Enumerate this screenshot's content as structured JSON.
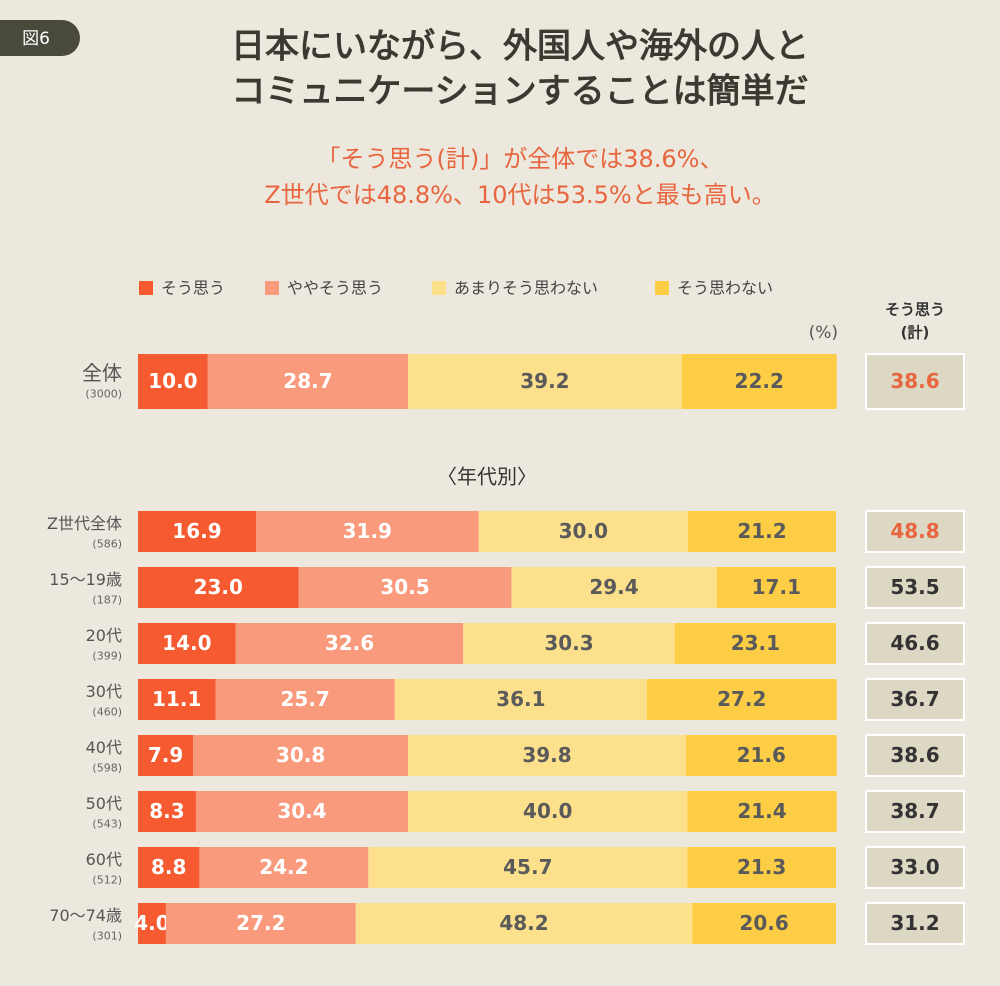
{
  "chart_data": {
    "type": "bar",
    "orientation": "horizontal",
    "stacked": true,
    "badge": "図6",
    "title": [
      "日本にいながら、外国人や海外の人と",
      "コミュニケーションすることは簡単だ"
    ],
    "subtitle": [
      "「そう思う(計)」が全体では38.6%、",
      "Z世代では48.8%、10代は53.5%と最も高い。"
    ],
    "unit_label": "(%)",
    "section_label": "〈年代別〉",
    "categories": [
      "全体",
      "Z世代全体",
      "15〜19歳",
      "20代",
      "30代",
      "40代",
      "50代",
      "60代",
      "70〜74歳"
    ],
    "counts": [
      "(3000)",
      "(586)",
      "(187)",
      "(399)",
      "(460)",
      "(598)",
      "(543)",
      "(512)",
      "(301)"
    ],
    "xlim": [
      0,
      100
    ],
    "series": [
      {
        "name": "そう思う",
        "color": "#f55a30",
        "label_color": "#ffffff",
        "values": [
          10.0,
          16.9,
          23.0,
          14.0,
          11.1,
          7.9,
          8.3,
          8.8,
          4.0
        ],
        "value_labels": [
          "10.0",
          "16.9",
          "23.0",
          "14.0",
          "11.1",
          "7.9",
          "8.3",
          "8.8",
          "4.0"
        ]
      },
      {
        "name": "ややそう思う",
        "color": "#f99a7c",
        "label_color": "#ffffff",
        "values": [
          28.7,
          31.9,
          30.5,
          32.6,
          25.7,
          30.8,
          30.4,
          24.2,
          27.2
        ],
        "value_labels": [
          "28.7",
          "31.9",
          "30.5",
          "32.6",
          "25.7",
          "30.8",
          "30.4",
          "24.2",
          "27.2"
        ]
      },
      {
        "name": "あまりそう思わない",
        "color": "#fde08c",
        "label_color": "#5a5a5a",
        "values": [
          39.2,
          30.0,
          29.4,
          30.3,
          36.1,
          39.8,
          40.0,
          45.7,
          48.2
        ],
        "value_labels": [
          "39.2",
          "30.0",
          "29.4",
          "30.3",
          "36.1",
          "39.8",
          "40.0",
          "45.7",
          "48.2"
        ]
      },
      {
        "name": "そう思わない",
        "color": "#fccd45",
        "label_color": "#5a5a5a",
        "values": [
          22.2,
          21.2,
          17.1,
          23.1,
          27.2,
          21.6,
          21.4,
          21.3,
          20.6
        ],
        "value_labels": [
          "22.2",
          "21.2",
          "17.1",
          "23.1",
          "27.2",
          "21.6",
          "21.4",
          "21.3",
          "20.6"
        ]
      }
    ],
    "totals": {
      "header": [
        "そう思う",
        "(計)"
      ],
      "values": [
        38.6,
        48.8,
        53.5,
        46.6,
        36.7,
        38.6,
        38.7,
        33.0,
        31.2
      ],
      "value_labels": [
        "38.6",
        "48.8",
        "53.5",
        "46.6",
        "36.7",
        "38.6",
        "38.7",
        "33.0",
        "31.2"
      ],
      "colors": [
        "#e8663f",
        "#e8663f",
        "#333333",
        "#333333",
        "#333333",
        "#333333",
        "#333333",
        "#333333",
        "#333333"
      ]
    }
  }
}
